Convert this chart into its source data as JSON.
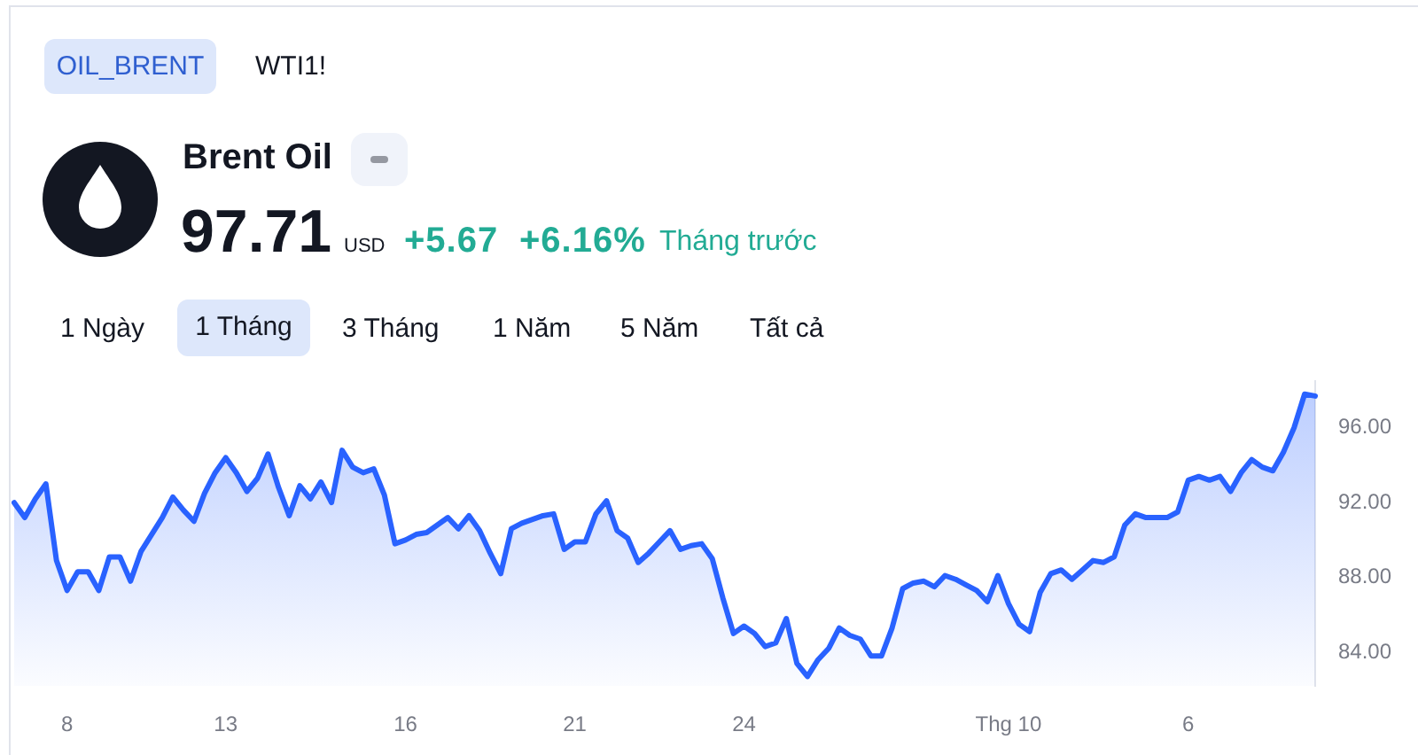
{
  "chart_data": {
    "type": "area",
    "title": "Brent Oil",
    "annotations": [
      "OIL_BRENT",
      "WTI1!",
      "97.71",
      "USD",
      "+5.67",
      "+6.16%",
      "Tháng trước",
      "1 Ngày",
      "1 Tháng",
      "3 Tháng",
      "1 Năm",
      "5 Năm",
      "Tất cả"
    ],
    "categories": [
      null,
      null,
      null,
      null,
      null,
      "8",
      null,
      null,
      null,
      null,
      null,
      null,
      null,
      null,
      null,
      null,
      null,
      null,
      null,
      null,
      "13",
      null,
      null,
      null,
      null,
      null,
      null,
      null,
      null,
      null,
      null,
      null,
      null,
      null,
      null,
      null,
      null,
      "16",
      null,
      null,
      null,
      null,
      null,
      null,
      null,
      null,
      null,
      null,
      null,
      null,
      null,
      null,
      null,
      "21",
      null,
      null,
      null,
      null,
      null,
      null,
      null,
      null,
      null,
      null,
      null,
      null,
      null,
      null,
      null,
      "24",
      null,
      null,
      null,
      null,
      null,
      null,
      null,
      null,
      null,
      null,
      null,
      null,
      null,
      null,
      null,
      null,
      null,
      null,
      null,
      null,
      null,
      null,
      null,
      null,
      "Thg 10",
      null,
      null,
      null,
      null,
      null,
      null,
      null,
      null,
      null,
      null,
      null,
      null,
      null,
      null,
      null,
      null,
      "6",
      null,
      null,
      null,
      null,
      null,
      null,
      null,
      null,
      null,
      null,
      null,
      null
    ],
    "values": [
      92.0,
      91.2,
      92.2,
      93.0,
      88.9,
      87.3,
      88.3,
      88.3,
      87.3,
      89.1,
      89.1,
      87.8,
      89.4,
      90.3,
      91.2,
      92.3,
      91.6,
      91.0,
      92.5,
      93.6,
      94.4,
      93.6,
      92.6,
      93.3,
      94.6,
      92.8,
      91.3,
      92.9,
      92.2,
      93.1,
      92.0,
      94.8,
      93.9,
      93.6,
      93.8,
      92.4,
      89.8,
      90.0,
      90.3,
      90.4,
      90.8,
      91.2,
      90.6,
      91.3,
      90.5,
      89.3,
      88.2,
      90.6,
      90.9,
      91.1,
      91.3,
      91.4,
      89.5,
      89.9,
      89.9,
      91.4,
      92.1,
      90.5,
      90.1,
      88.8,
      89.3,
      89.9,
      90.5,
      89.5,
      89.7,
      89.8,
      89.0,
      86.9,
      85.0,
      85.4,
      85.0,
      84.3,
      84.5,
      85.8,
      83.4,
      82.7,
      83.6,
      84.2,
      85.3,
      84.9,
      84.7,
      83.8,
      83.8,
      85.3,
      87.4,
      87.7,
      87.8,
      87.5,
      88.1,
      87.9,
      87.6,
      87.3,
      86.7,
      88.1,
      86.6,
      85.5,
      85.1,
      87.2,
      88.2,
      88.4,
      87.9,
      88.4,
      88.9,
      88.8,
      89.1,
      90.8,
      91.4,
      91.2,
      91.2,
      91.2,
      91.5,
      93.2,
      93.4,
      93.2,
      93.4,
      92.6,
      93.6,
      94.3,
      93.9,
      93.7,
      94.7,
      96.0,
      97.8,
      97.7
    ],
    "color": "#2962ff",
    "ylim": [
      82.2,
      98.5
    ],
    "yticks": [
      {
        "value": 84,
        "label": "84.00"
      },
      {
        "value": 88,
        "label": "88.00"
      },
      {
        "value": 92,
        "label": "92.00"
      },
      {
        "value": 96,
        "label": "96.00"
      }
    ]
  }
}
